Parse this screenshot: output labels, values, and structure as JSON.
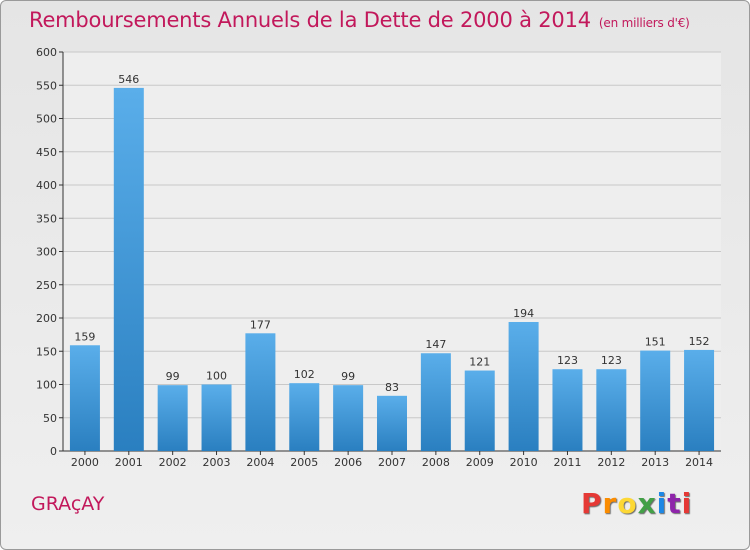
{
  "header": {
    "title": "Remboursements Annuels de la Dette de 2000 à 2014",
    "subtitle": "(en milliers d'€)"
  },
  "commune": "GRAçAY",
  "logo": {
    "text": "Proxiti",
    "colors": [
      "#e53935",
      "#fb8c00",
      "#fdd835",
      "#43a047",
      "#1e88e5",
      "#8e24aa",
      "#e53935"
    ]
  },
  "chart_data": {
    "type": "bar",
    "title": "Remboursements Annuels de la Dette de 2000 à 2014",
    "subtitle": "(en milliers d'€)",
    "categories": [
      "2000",
      "2001",
      "2002",
      "2003",
      "2004",
      "2005",
      "2006",
      "2007",
      "2008",
      "2009",
      "2010",
      "2011",
      "2012",
      "2013",
      "2014"
    ],
    "values": [
      159,
      546,
      99,
      100,
      177,
      102,
      99,
      83,
      147,
      121,
      194,
      123,
      123,
      151,
      152
    ],
    "ylim": [
      0,
      600
    ],
    "yticks": [
      0,
      50,
      100,
      150,
      200,
      250,
      300,
      350,
      400,
      450,
      500,
      550,
      600
    ],
    "grid": true,
    "colors": {
      "bar_light": "#5aaeea",
      "bar_dark": "#2a7fc0",
      "grid": "#c8c8c8",
      "axis": "#333333"
    }
  }
}
